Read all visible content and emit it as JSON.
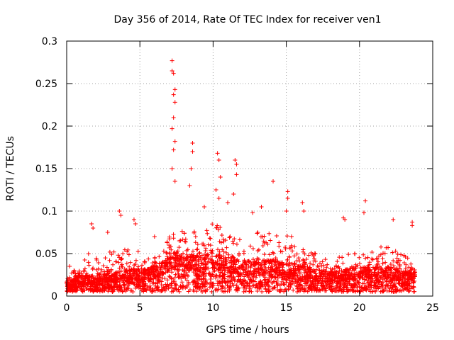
{
  "chart_data": {
    "type": "scatter",
    "title": "Day 356 of 2014, Rate Of TEC Index for receiver ven1",
    "xlabel": "GPS time / hours",
    "ylabel": "ROTI / TECUs",
    "xlim": [
      0,
      25
    ],
    "ylim": [
      0,
      0.3
    ],
    "x_ticks": [
      0,
      5,
      10,
      15,
      20,
      25
    ],
    "x_tick_labels": [
      "0",
      "5",
      "10",
      "15",
      "20",
      "25"
    ],
    "y_ticks": [
      0,
      0.05,
      0.1,
      0.15,
      0.2,
      0.25,
      0.3
    ],
    "y_tick_labels": [
      "0",
      "0.05",
      "0.1",
      "0.15",
      "0.2",
      "0.25",
      "0.3"
    ],
    "grid": true,
    "marker": "+",
    "series_color": "#ff0000",
    "series": [
      {
        "name": "ROTI",
        "envelope": {
          "x": [
            0,
            0.5,
            1,
            1.5,
            2,
            2.5,
            3,
            3.5,
            4,
            4.5,
            5,
            5.5,
            6,
            6.5,
            7,
            7.5,
            8,
            8.5,
            9,
            9.5,
            10,
            10.5,
            11,
            11.5,
            12,
            12.5,
            13,
            13.5,
            14,
            14.5,
            15,
            15.5,
            16,
            16.5,
            17,
            17.5,
            18,
            18.5,
            19,
            19.5,
            20,
            20.5,
            21,
            21.5,
            22,
            22.5,
            23,
            23.5,
            23.8
          ],
          "base": [
            0.01,
            0.012,
            0.015,
            0.014,
            0.013,
            0.015,
            0.016,
            0.017,
            0.018,
            0.02,
            0.019,
            0.02,
            0.022,
            0.025,
            0.03,
            0.035,
            0.033,
            0.032,
            0.03,
            0.032,
            0.033,
            0.031,
            0.03,
            0.028,
            0.027,
            0.026,
            0.026,
            0.027,
            0.028,
            0.026,
            0.025,
            0.024,
            0.023,
            0.021,
            0.019,
            0.018,
            0.017,
            0.018,
            0.019,
            0.02,
            0.021,
            0.022,
            0.023,
            0.022,
            0.021,
            0.02,
            0.018,
            0.017,
            0.016
          ],
          "top": [
            0.025,
            0.03,
            0.04,
            0.05,
            0.045,
            0.05,
            0.055,
            0.05,
            0.06,
            0.065,
            0.05,
            0.045,
            0.045,
            0.05,
            0.07,
            0.09,
            0.085,
            0.08,
            0.07,
            0.08,
            0.09,
            0.085,
            0.075,
            0.07,
            0.065,
            0.07,
            0.075,
            0.08,
            0.075,
            0.07,
            0.075,
            0.07,
            0.06,
            0.055,
            0.05,
            0.045,
            0.04,
            0.045,
            0.05,
            0.05,
            0.05,
            0.05,
            0.055,
            0.06,
            0.06,
            0.055,
            0.05,
            0.045,
            0.035
          ]
        },
        "notable_points": [
          {
            "x": 7.2,
            "y": 0.277
          },
          {
            "x": 7.2,
            "y": 0.265
          },
          {
            "x": 7.3,
            "y": 0.262
          },
          {
            "x": 7.4,
            "y": 0.243
          },
          {
            "x": 7.3,
            "y": 0.237
          },
          {
            "x": 7.4,
            "y": 0.228
          },
          {
            "x": 7.3,
            "y": 0.21
          },
          {
            "x": 7.2,
            "y": 0.197
          },
          {
            "x": 7.4,
            "y": 0.182
          },
          {
            "x": 7.3,
            "y": 0.172
          },
          {
            "x": 7.2,
            "y": 0.15
          },
          {
            "x": 7.4,
            "y": 0.135
          },
          {
            "x": 8.6,
            "y": 0.18
          },
          {
            "x": 8.6,
            "y": 0.17
          },
          {
            "x": 8.5,
            "y": 0.15
          },
          {
            "x": 8.4,
            "y": 0.13
          },
          {
            "x": 10.3,
            "y": 0.168
          },
          {
            "x": 10.4,
            "y": 0.16
          },
          {
            "x": 10.5,
            "y": 0.14
          },
          {
            "x": 10.2,
            "y": 0.125
          },
          {
            "x": 10.4,
            "y": 0.115
          },
          {
            "x": 11.5,
            "y": 0.16
          },
          {
            "x": 11.6,
            "y": 0.155
          },
          {
            "x": 11.6,
            "y": 0.143
          },
          {
            "x": 11.4,
            "y": 0.12
          },
          {
            "x": 14.1,
            "y": 0.135
          },
          {
            "x": 15.1,
            "y": 0.123
          },
          {
            "x": 15.1,
            "y": 0.115
          },
          {
            "x": 15.0,
            "y": 0.1
          },
          {
            "x": 16.1,
            "y": 0.11
          },
          {
            "x": 16.2,
            "y": 0.1
          },
          {
            "x": 20.4,
            "y": 0.112
          },
          {
            "x": 20.3,
            "y": 0.098
          },
          {
            "x": 3.6,
            "y": 0.1
          },
          {
            "x": 3.7,
            "y": 0.095
          },
          {
            "x": 4.6,
            "y": 0.09
          },
          {
            "x": 4.7,
            "y": 0.085
          },
          {
            "x": 1.7,
            "y": 0.085
          },
          {
            "x": 1.8,
            "y": 0.08
          },
          {
            "x": 2.8,
            "y": 0.075
          },
          {
            "x": 13.3,
            "y": 0.105
          },
          {
            "x": 12.7,
            "y": 0.098
          },
          {
            "x": 18.9,
            "y": 0.092
          },
          {
            "x": 19.0,
            "y": 0.09
          },
          {
            "x": 22.3,
            "y": 0.09
          },
          {
            "x": 23.6,
            "y": 0.087
          },
          {
            "x": 23.6,
            "y": 0.083
          },
          {
            "x": 9.4,
            "y": 0.105
          },
          {
            "x": 11.0,
            "y": 0.11
          },
          {
            "x": 6.0,
            "y": 0.07
          },
          {
            "x": 0.2,
            "y": 0.035
          },
          {
            "x": 0.5,
            "y": 0.03
          }
        ]
      }
    ]
  }
}
